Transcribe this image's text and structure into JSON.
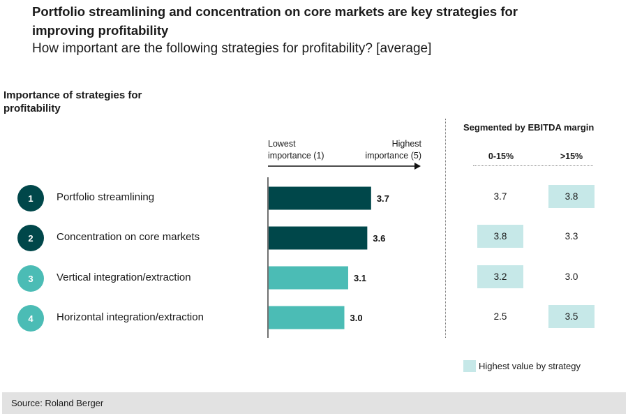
{
  "title": "Portfolio streamlining and concentration on core markets are key strategies for improving profitability",
  "subtitle": "How important are the following strategies for profitability? [average]",
  "section_label": "Importance of strategies for profitability",
  "axis": {
    "low_label": "Lowest importance (1)",
    "high_label": "Highest importance (5)"
  },
  "segment": {
    "title": "Segmented by EBITDA margin",
    "columns": [
      "0-15%",
      ">15%"
    ]
  },
  "colors": {
    "dark": "#00474a",
    "light": "#4bbcb5",
    "highlight": "#c6e8e8"
  },
  "rows": [
    {
      "num": "1",
      "label": "Portfolio streamlining",
      "tone": "dark",
      "seg": [
        {
          "v": "3.7",
          "hl": false
        },
        {
          "v": "3.8",
          "hl": true
        }
      ]
    },
    {
      "num": "2",
      "label": "Concentration on core markets",
      "tone": "dark",
      "seg": [
        {
          "v": "3.8",
          "hl": true
        },
        {
          "v": "3.3",
          "hl": false
        }
      ]
    },
    {
      "num": "3",
      "label": "Vertical integration/extraction",
      "tone": "light",
      "seg": [
        {
          "v": "3.2",
          "hl": true
        },
        {
          "v": "3.0",
          "hl": false
        }
      ]
    },
    {
      "num": "4",
      "label": "Horizontal integration/extraction",
      "tone": "light",
      "seg": [
        {
          "v": "2.5",
          "hl": false
        },
        {
          "v": "3.5",
          "hl": true
        }
      ]
    }
  ],
  "chart_data": {
    "type": "bar",
    "orientation": "horizontal",
    "title": "Importance of strategies for profitability",
    "categories": [
      "Portfolio streamlining",
      "Concentration on core markets",
      "Vertical integration/extraction",
      "Horizontal integration/extraction"
    ],
    "values": [
      3.7,
      3.6,
      3.1,
      3.0
    ],
    "value_labels": [
      "3.7",
      "3.6",
      "3.1",
      "3.0"
    ],
    "xlim": [
      1,
      5
    ],
    "xlabel_low": "Lowest importance (1)",
    "xlabel_high": "Highest importance (5)",
    "segments": [
      {
        "name": "0-15%",
        "values": [
          3.7,
          3.8,
          3.2,
          2.5
        ]
      },
      {
        "name": ">15%",
        "values": [
          3.8,
          3.3,
          3.0,
          3.5
        ]
      }
    ]
  },
  "legend": {
    "label": "Highest value by strategy"
  },
  "source": "Source: Roland Berger"
}
